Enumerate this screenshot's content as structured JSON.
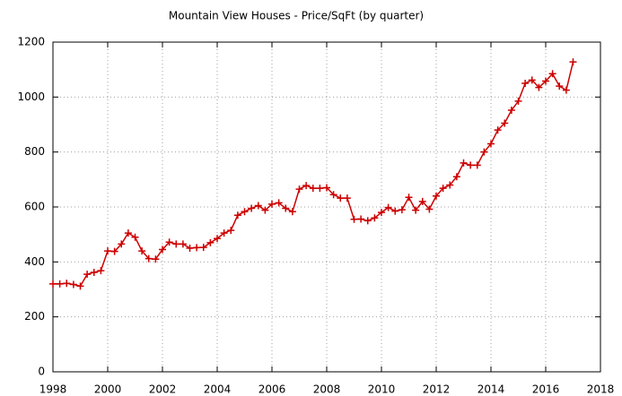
{
  "chart_data": {
    "type": "line",
    "title": "Mountain View Houses - Price/SqFt (by quarter)",
    "x": [
      1998,
      1998.25,
      1998.5,
      1998.75,
      1999,
      1999.25,
      1999.5,
      1999.75,
      2000,
      2000.25,
      2000.5,
      2000.75,
      2001,
      2001.25,
      2001.5,
      2001.75,
      2002,
      2002.25,
      2002.5,
      2002.75,
      2003,
      2003.25,
      2003.5,
      2003.75,
      2004,
      2004.25,
      2004.5,
      2004.75,
      2005,
      2005.25,
      2005.5,
      2005.75,
      2006,
      2006.25,
      2006.5,
      2006.75,
      2007,
      2007.25,
      2007.5,
      2007.75,
      2008,
      2008.25,
      2008.5,
      2008.75,
      2009,
      2009.25,
      2009.5,
      2009.75,
      2010,
      2010.25,
      2010.5,
      2010.75,
      2011,
      2011.25,
      2011.5,
      2011.75,
      2012,
      2012.25,
      2012.5,
      2012.75,
      2013,
      2013.25,
      2013.5,
      2013.75,
      2014,
      2014.25,
      2014.5,
      2014.75,
      2015,
      2015.25,
      2015.5,
      2015.75,
      2016,
      2016.25,
      2016.5,
      2016.75,
      2017
    ],
    "series": [
      {
        "color": "#cc0000",
        "values": [
          320,
          320,
          322,
          318,
          312,
          355,
          362,
          368,
          440,
          438,
          465,
          505,
          490,
          440,
          412,
          410,
          445,
          472,
          465,
          465,
          450,
          452,
          453,
          470,
          485,
          505,
          515,
          570,
          583,
          595,
          605,
          588,
          610,
          615,
          595,
          583,
          665,
          678,
          668,
          668,
          670,
          645,
          632,
          632,
          555,
          556,
          550,
          560,
          580,
          598,
          585,
          590,
          635,
          588,
          620,
          592,
          640,
          668,
          680,
          710,
          760,
          752,
          752,
          800,
          830,
          880,
          905,
          952,
          985,
          1050,
          1062,
          1035,
          1058,
          1085,
          1040,
          1025,
          1128
        ]
      }
    ],
    "xlim": [
      1998,
      2018
    ],
    "xticks": [
      1998,
      2000,
      2002,
      2004,
      2006,
      2008,
      2010,
      2012,
      2014,
      2016,
      2018
    ],
    "ylim": [
      0,
      1200
    ],
    "yticks": [
      0,
      200,
      400,
      600,
      800,
      1000,
      1200
    ],
    "grid": true
  }
}
